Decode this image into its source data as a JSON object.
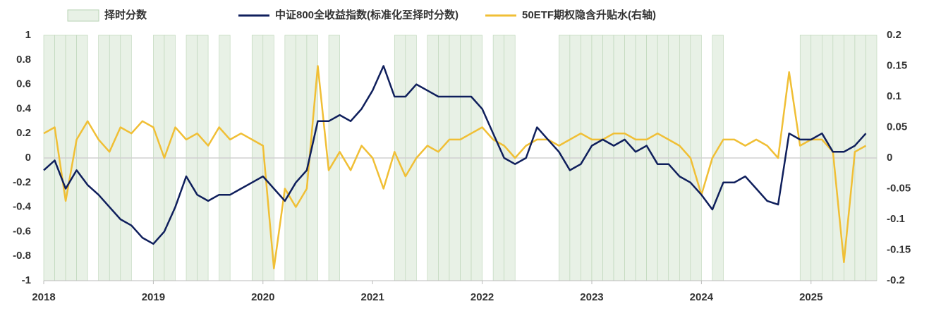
{
  "chart_data": {
    "type": "line",
    "x": [
      2018.0,
      2018.1,
      2018.2,
      2018.3,
      2018.4,
      2018.5,
      2018.6,
      2018.7,
      2018.8,
      2018.9,
      2019.0,
      2019.1,
      2019.2,
      2019.3,
      2019.4,
      2019.5,
      2019.6,
      2019.7,
      2019.8,
      2019.9,
      2020.0,
      2020.1,
      2020.2,
      2020.3,
      2020.4,
      2020.5,
      2020.6,
      2020.7,
      2020.8,
      2020.9,
      2021.0,
      2021.1,
      2021.2,
      2021.3,
      2021.4,
      2021.5,
      2021.6,
      2021.7,
      2021.8,
      2021.9,
      2022.0,
      2022.1,
      2022.2,
      2022.3,
      2022.4,
      2022.5,
      2022.6,
      2022.7,
      2022.8,
      2022.9,
      2023.0,
      2023.1,
      2023.2,
      2023.3,
      2023.4,
      2023.5,
      2023.6,
      2023.7,
      2023.8,
      2023.9,
      2024.0,
      2024.1,
      2024.2,
      2024.3,
      2024.4,
      2024.5,
      2024.6,
      2024.7,
      2024.8,
      2024.9,
      2025.0,
      2025.1,
      2025.2,
      2025.3,
      2025.4,
      2025.5
    ],
    "series": [
      {
        "name": "择时分数",
        "color": "#e8f1e6",
        "style": "area",
        "values": [
          1,
          1,
          1,
          1,
          -1,
          1,
          1,
          1,
          -1,
          -1,
          1,
          1,
          -1,
          1,
          1,
          -1,
          1,
          -1,
          -1,
          1,
          1,
          -1,
          1,
          1,
          1,
          -1,
          1,
          -1,
          -1,
          -1,
          -1,
          -1,
          1,
          1,
          -1,
          1,
          1,
          1,
          1,
          1,
          -1,
          1,
          1,
          -1,
          -1,
          -1,
          -1,
          1,
          1,
          1,
          1,
          1,
          1,
          1,
          1,
          1,
          1,
          1,
          1,
          1,
          -1,
          1,
          -1,
          -1,
          -1,
          -1,
          -1,
          -1,
          -1,
          1,
          1,
          1,
          1,
          1,
          1,
          1
        ]
      },
      {
        "name": "中证800全收益指数(标准化至择时分数)",
        "color": "#0f1f5c",
        "style": "line",
        "values": [
          -0.1,
          -0.02,
          -0.25,
          -0.1,
          -0.22,
          -0.3,
          -0.4,
          -0.5,
          -0.55,
          -0.65,
          -0.7,
          -0.6,
          -0.4,
          -0.15,
          -0.3,
          -0.35,
          -0.3,
          -0.3,
          -0.25,
          -0.2,
          -0.15,
          -0.25,
          -0.35,
          -0.2,
          -0.1,
          0.3,
          0.3,
          0.35,
          0.3,
          0.4,
          0.55,
          0.75,
          0.5,
          0.5,
          0.6,
          0.55,
          0.5,
          0.5,
          0.5,
          0.5,
          0.4,
          0.2,
          0.0,
          -0.05,
          0.0,
          0.25,
          0.15,
          0.05,
          -0.1,
          -0.05,
          0.1,
          0.15,
          0.1,
          0.15,
          0.05,
          0.1,
          -0.05,
          -0.05,
          -0.15,
          -0.2,
          -0.3,
          -0.42,
          -0.2,
          -0.2,
          -0.15,
          -0.25,
          -0.35,
          -0.38,
          0.2,
          0.15,
          0.15,
          0.2,
          0.05,
          0.05,
          0.1,
          0.2
        ]
      },
      {
        "name": "50ETF期权隐含升贴水(右轴)",
        "color": "#f0bf35",
        "style": "line",
        "axis": "y2",
        "values": [
          0.04,
          0.05,
          -0.07,
          0.03,
          0.06,
          0.03,
          0.01,
          0.05,
          0.04,
          0.06,
          0.05,
          0.0,
          0.05,
          0.03,
          0.04,
          0.02,
          0.05,
          0.03,
          0.04,
          0.03,
          0.02,
          -0.18,
          -0.05,
          -0.08,
          -0.05,
          0.15,
          -0.02,
          0.01,
          -0.02,
          0.02,
          0.0,
          -0.05,
          0.01,
          -0.03,
          0.0,
          0.02,
          0.01,
          0.03,
          0.03,
          0.04,
          0.05,
          0.03,
          0.02,
          0.0,
          0.02,
          0.03,
          0.03,
          0.02,
          0.03,
          0.04,
          0.03,
          0.03,
          0.04,
          0.04,
          0.03,
          0.03,
          0.04,
          0.03,
          0.02,
          0.0,
          -0.06,
          0.0,
          0.03,
          0.03,
          0.02,
          0.03,
          0.02,
          0.0,
          0.14,
          0.02,
          0.03,
          0.03,
          0.01,
          -0.17,
          0.01,
          0.02
        ]
      }
    ],
    "xlim": [
      2018,
      2025.6
    ],
    "xticks": [
      2018,
      2019,
      2020,
      2021,
      2022,
      2023,
      2024,
      2025
    ],
    "ylim": [
      -1,
      1
    ],
    "yticks": [
      1,
      0.8,
      0.6,
      0.4,
      0.2,
      0,
      -0.2,
      -0.4,
      -0.6,
      -0.8,
      -1
    ],
    "y2lim": [
      -0.2,
      0.2
    ],
    "y2ticks": [
      0.2,
      0.15,
      0.1,
      0.05,
      0,
      -0.05,
      -0.1,
      -0.15,
      -0.2
    ]
  }
}
